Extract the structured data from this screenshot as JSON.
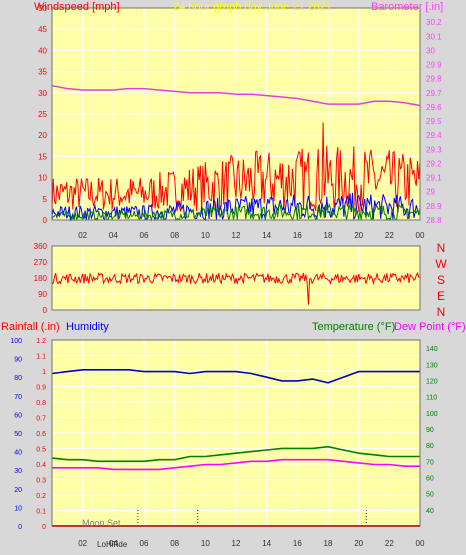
{
  "header": {
    "wind_label": "Windspeed [mph]",
    "graph_title": "24 hour graph day   June 21 2021",
    "baro_label": "Barometer [.in]"
  },
  "colors": {
    "plot_bg": "#ffffa8",
    "wind_gust": "#ff0000",
    "wind_avg": "#0000ff",
    "wind_min": "#008000",
    "barometer": "#e040e0",
    "direction": "#ff0000",
    "humidity": "#0000c0",
    "temperature": "#008000",
    "dewpoint": "#ff00ff",
    "rain": "#ff0000",
    "label_red": "#ff0000",
    "label_yellow": "#ffff00",
    "label_blue": "#0000ff",
    "label_green": "#008000",
    "label_magenta": "#ff00ff",
    "grid": "#ffffff",
    "gray": "#808080",
    "dark": "#303030"
  },
  "compass": [
    "N",
    "W",
    "S",
    "E",
    "N"
  ],
  "lower": {
    "rain_label": "Rainfall (.in)",
    "humidity_label": "Humidity",
    "temp_label": "Temperature (°F)",
    "dew_label": "Dew Point (°F)",
    "moon_label": "Moon Set",
    "bottom_labels": [
      "Lo",
      "Hi",
      "Tide"
    ]
  },
  "chart_data": [
    {
      "type": "line",
      "title": "24 hour graph day   June 21 2021",
      "x_ticks": [
        "02",
        "04",
        "06",
        "08",
        "10",
        "12",
        "14",
        "16",
        "18",
        "20",
        "22",
        "00"
      ],
      "left_axis": {
        "label": "Windspeed [mph]",
        "ylim": [
          0,
          50
        ],
        "ticks": [
          "0",
          "5",
          "10",
          "15",
          "20",
          "25",
          "30",
          "35",
          "40",
          "45",
          "50"
        ]
      },
      "right_axis": {
        "label": "Barometer [.in]",
        "ylim": [
          28.8,
          30.3
        ],
        "ticks": [
          "28.8",
          "28.9",
          "29",
          "29.1",
          "29.2",
          "29.3",
          "29.4",
          "29.5",
          "29.6",
          "29.7",
          "29.8",
          "29.9",
          "30",
          "30.1",
          "30.2"
        ]
      },
      "grid": true,
      "series": [
        {
          "axis": "right",
          "color": "#e040e0",
          "x": [
            0,
            1,
            2,
            3,
            4,
            5,
            6,
            7,
            8,
            9,
            10,
            11,
            12,
            13,
            14,
            15,
            16,
            17,
            18,
            19,
            20,
            21,
            22,
            23,
            24
          ],
          "values": [
            29.75,
            29.73,
            29.72,
            29.72,
            29.72,
            29.73,
            29.73,
            29.72,
            29.71,
            29.7,
            29.7,
            29.7,
            29.69,
            29.69,
            29.68,
            29.67,
            29.66,
            29.64,
            29.62,
            29.62,
            29.62,
            29.64,
            29.64,
            29.63,
            29.61
          ]
        },
        {
          "color": "#ff0000",
          "desc_points": 288,
          "typical_range": [
            2,
            10
          ],
          "peak": {
            "x": 17.7,
            "y": 23
          }
        },
        {
          "color": "#0000ff",
          "typical_range": [
            0,
            5
          ]
        },
        {
          "color": "#008000",
          "typical_range": [
            0,
            3
          ]
        }
      ]
    },
    {
      "type": "line",
      "y_ticks": [
        "0",
        "90",
        "180",
        "270",
        "360"
      ],
      "ylim": [
        0,
        360
      ],
      "series": [
        {
          "color": "#ff0000",
          "mean": 178,
          "spread": 30,
          "min_spike": {
            "x": 16.7,
            "y": 30
          }
        }
      ]
    },
    {
      "type": "line",
      "x_ticks": [
        "02",
        "04",
        "06",
        "08",
        "10",
        "12",
        "14",
        "16",
        "18",
        "20",
        "22",
        "00"
      ],
      "left_axis_1": {
        "label": "Rainfall (.in)",
        "ylim": [
          0,
          1.2
        ],
        "ticks": [
          "0",
          "0.1",
          "0.2",
          "0.3",
          "0.4",
          "0.5",
          "0.6",
          "0.7",
          "0.8",
          "0.9",
          "1",
          "1.1",
          "1.2"
        ]
      },
      "left_axis_2": {
        "label": "Humidity",
        "ylim": [
          0,
          100
        ],
        "ticks": [
          "0",
          "10",
          "20",
          "30",
          "40",
          "50",
          "60",
          "70",
          "80",
          "90",
          "100"
        ]
      },
      "right_axis": {
        "label": "Temperature (°F)",
        "ylim": [
          30,
          145
        ],
        "ticks": [
          "40",
          "50",
          "60",
          "70",
          "80",
          "90",
          "100",
          "110",
          "120",
          "130",
          "140"
        ]
      },
      "series": [
        {
          "axis": "left_2",
          "color": "#0000c0",
          "x": [
            0,
            1,
            2,
            3,
            4,
            5,
            6,
            7,
            8,
            9,
            10,
            11,
            12,
            13,
            14,
            15,
            16,
            17,
            18,
            19,
            20,
            21,
            22,
            23,
            24
          ],
          "values": [
            82,
            83,
            84,
            84,
            84,
            84,
            83,
            83,
            83,
            82,
            83,
            83,
            83,
            82,
            80,
            78,
            78,
            79,
            77,
            80,
            83,
            83,
            83,
            83,
            83
          ]
        },
        {
          "axis": "right",
          "color": "#008000",
          "x": [
            0,
            1,
            2,
            3,
            4,
            5,
            6,
            7,
            8,
            9,
            10,
            11,
            12,
            13,
            14,
            15,
            16,
            17,
            18,
            19,
            20,
            21,
            22,
            23,
            24
          ],
          "values": [
            72,
            71,
            71,
            70,
            70,
            70,
            70,
            71,
            71,
            73,
            73,
            74,
            75,
            76,
            77,
            78,
            78,
            78,
            79,
            77,
            75,
            74,
            73,
            73,
            73
          ]
        },
        {
          "axis": "right",
          "color": "#ff00ff",
          "x": [
            0,
            1,
            2,
            3,
            4,
            5,
            6,
            7,
            8,
            9,
            10,
            11,
            12,
            13,
            14,
            15,
            16,
            17,
            18,
            19,
            20,
            21,
            22,
            23,
            24
          ],
          "values": [
            66,
            66,
            66,
            66,
            65,
            65,
            65,
            65,
            66,
            67,
            68,
            68,
            69,
            70,
            70,
            71,
            71,
            71,
            71,
            70,
            69,
            68,
            68,
            67,
            67
          ]
        },
        {
          "axis": "left_1",
          "color": "#ff0000",
          "x": [
            0,
            24
          ],
          "values": [
            0,
            0
          ]
        }
      ],
      "markers_x": [
        5.6,
        9.5,
        20.5
      ]
    }
  ]
}
